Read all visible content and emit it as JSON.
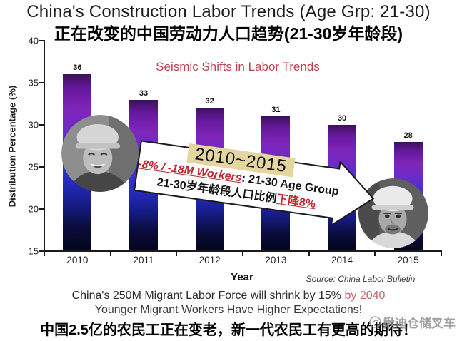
{
  "title_en": "China's Construction  Labor Trends  (Age Grp: 21-30)",
  "title_zh": "正在改变的中国劳动力人口趋势(21-30岁年龄段)",
  "chart": {
    "subtitle": "Seismic Shifts in Labor Trends",
    "subtitle_color": "#bf4252",
    "y_axis_label": "Distribution Percentage (%)",
    "x_axis_title": "Year",
    "source": "Source: China Labor Bulletin",
    "y_ticks": [
      40,
      35,
      30,
      25,
      20,
      15
    ]
  },
  "chart_data": {
    "type": "bar",
    "categories": [
      "2010",
      "2011",
      "2012",
      "2013",
      "2014",
      "2015"
    ],
    "values": [
      36,
      33,
      32,
      31,
      30,
      28
    ],
    "title": "Seismic Shifts in Labor Trends",
    "xlabel": "Year",
    "ylabel": "Distribution Percentage (%)",
    "ylim": [
      15,
      40
    ],
    "grid": false,
    "legend": "none",
    "bar_gradient": [
      "#3c1158",
      "#7f25ba",
      "#3d32d6",
      "#04051a"
    ]
  },
  "annotation_arrow": {
    "period": "2010~2015",
    "period_highlight_color": "#e5d6a0",
    "stat_red": "-8% / -18M Workers",
    "stat_black": ": 21-30 Age Group",
    "line3_black": "21-30岁年龄段人口比例",
    "line3_red": "下降8%",
    "red_color": "#c1272d"
  },
  "photos": {
    "left": "young-migrant-worker-portrait",
    "right": "older-migrant-worker-portrait"
  },
  "footer": {
    "line1_black": "China's 250M Migrant Labor Force",
    "line1_underlined": "will shrink by 15%",
    "line1_red": "by 2040",
    "line2": "Younger Migrant Workers Have Higher Expectations!",
    "line3": "中国2.5亿的农民工正在变老，新一代农民工有更高的期待！"
  },
  "watermark": "楸迪仓储叉车"
}
